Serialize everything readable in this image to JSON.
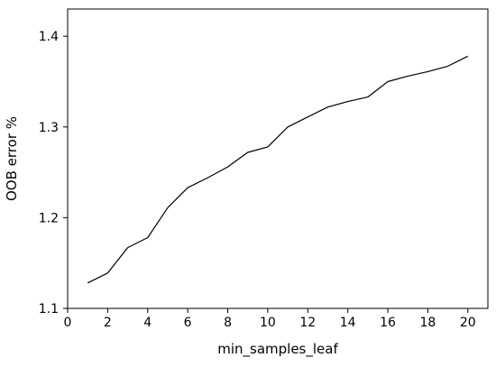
{
  "chart_data": {
    "type": "line",
    "title": "",
    "xlabel": "min_samples_leaf",
    "ylabel": "OOB error %",
    "xlim": [
      0,
      21
    ],
    "ylim": [
      1.1,
      1.43
    ],
    "xticks": [
      0,
      2,
      4,
      6,
      8,
      10,
      12,
      14,
      16,
      18,
      20
    ],
    "yticks": [
      1.1,
      1.2,
      1.3,
      1.4
    ],
    "grid": false,
    "legend": "none",
    "line_color": "#000000",
    "series": [
      {
        "x": [
          1,
          2,
          3,
          4,
          5,
          6,
          7,
          8,
          9,
          10,
          11,
          12,
          13,
          14,
          15,
          16,
          17,
          18,
          19,
          20
        ],
        "values": [
          1.128,
          1.139,
          1.167,
          1.178,
          1.211,
          1.233,
          1.244,
          1.256,
          1.272,
          1.278,
          1.3,
          1.311,
          1.322,
          1.328,
          1.333,
          1.35,
          1.356,
          1.361,
          1.367,
          1.378
        ]
      }
    ]
  }
}
